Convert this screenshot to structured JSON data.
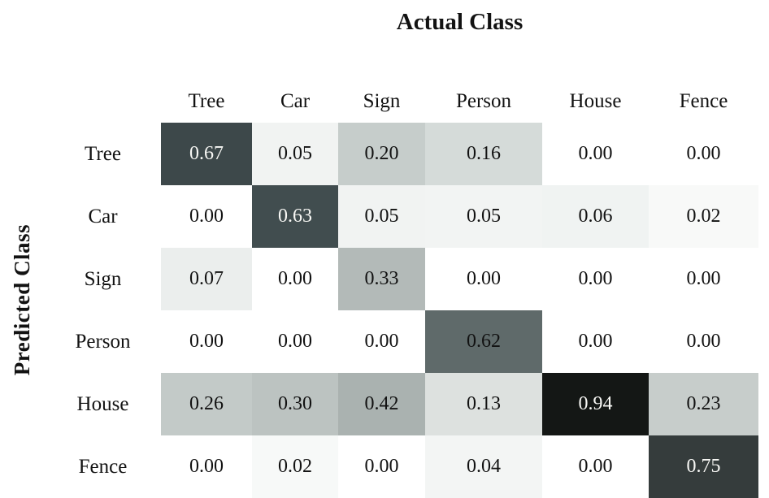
{
  "figure": {
    "top_title": "Actual Class",
    "left_axis_title": "Predicted Class"
  },
  "chart_data": {
    "type": "heatmap",
    "title": "Actual Class",
    "xlabel": "Actual Class",
    "ylabel": "Predicted Class",
    "x_axis_position": "top",
    "columns": [
      "Tree",
      "Car",
      "Sign",
      "Person",
      "House",
      "Fence"
    ],
    "rows": [
      "Tree",
      "Car",
      "Sign",
      "Person",
      "House",
      "Fence"
    ],
    "values": [
      [
        0.67,
        0.05,
        0.2,
        0.16,
        0.0,
        0.0
      ],
      [
        0.0,
        0.63,
        0.05,
        0.05,
        0.06,
        0.02
      ],
      [
        0.07,
        0.0,
        0.33,
        0.0,
        0.0,
        0.0
      ],
      [
        0.0,
        0.0,
        0.0,
        0.62,
        0.0,
        0.0
      ],
      [
        0.26,
        0.3,
        0.42,
        0.13,
        0.94,
        0.23
      ],
      [
        0.0,
        0.02,
        0.0,
        0.04,
        0.0,
        0.75
      ]
    ],
    "value_format": "two-decimal",
    "cell_colors": [
      [
        "#3d484a",
        "#f1f3f2",
        "#c6cdcb",
        "#d5dbd9",
        "#ffffff",
        "#ffffff"
      ],
      [
        "#ffffff",
        "#414d4f",
        "#f1f3f2",
        "#f2f4f3",
        "#f0f3f2",
        "#f8f9f8"
      ],
      [
        "#ebeeed",
        "#ffffff",
        "#b3bab8",
        "#ffffff",
        "#ffffff",
        "#ffffff"
      ],
      [
        "#ffffff",
        "#ffffff",
        "#ffffff",
        "#5f6a6a",
        "#ffffff",
        "#ffffff"
      ],
      [
        "#c3cac8",
        "#bcc3c1",
        "#aab2b0",
        "#dde1df",
        "#141715",
        "#c7cdcb"
      ],
      [
        "#ffffff",
        "#f7f9f8",
        "#ffffff",
        "#f3f5f4",
        "#ffffff",
        "#353c3c"
      ]
    ],
    "text_color_dark": "#121212",
    "text_color_light": "#f7f7f4",
    "colormap": "grayscale (0 = white, 1 = black)",
    "grid": false,
    "legend": false
  }
}
